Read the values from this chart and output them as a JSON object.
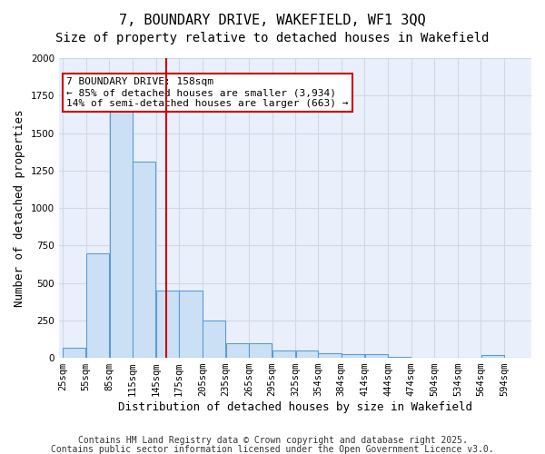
{
  "title": "7, BOUNDARY DRIVE, WAKEFIELD, WF1 3QQ",
  "subtitle": "Size of property relative to detached houses in Wakefield",
  "xlabel": "Distribution of detached houses by size in Wakefield",
  "ylabel": "Number of detached properties",
  "property_size": 158,
  "annotation_title": "7 BOUNDARY DRIVE: 158sqm",
  "annotation_line1": "← 85% of detached houses are smaller (3,934)",
  "annotation_line2": "14% of semi-detached houses are larger (663) →",
  "bar_values": [
    65,
    700,
    1650,
    1310,
    450,
    450,
    250,
    95,
    95,
    50,
    50,
    30,
    25,
    25,
    5,
    0,
    0,
    0,
    20,
    0
  ],
  "bin_edges": [
    25,
    55,
    85,
    115,
    145,
    175,
    205,
    235,
    265,
    295,
    325,
    354,
    384,
    414,
    444,
    474,
    504,
    534,
    564,
    594,
    624
  ],
  "bar_color": "#cce0f5",
  "bar_edge_color": "#5b9bd5",
  "vline_color": "#cc0000",
  "vline_x": 158,
  "ylim": [
    0,
    2000
  ],
  "grid_color": "#d0d8e8",
  "bg_color": "#eaf0fb",
  "annotation_box_color": "#cc0000",
  "footer_line1": "Contains HM Land Registry data © Crown copyright and database right 2025.",
  "footer_line2": "Contains public sector information licensed under the Open Government Licence v3.0.",
  "title_fontsize": 11,
  "subtitle_fontsize": 10,
  "xlabel_fontsize": 9,
  "ylabel_fontsize": 9,
  "tick_fontsize": 7.5,
  "annotation_fontsize": 8,
  "footer_fontsize": 7
}
